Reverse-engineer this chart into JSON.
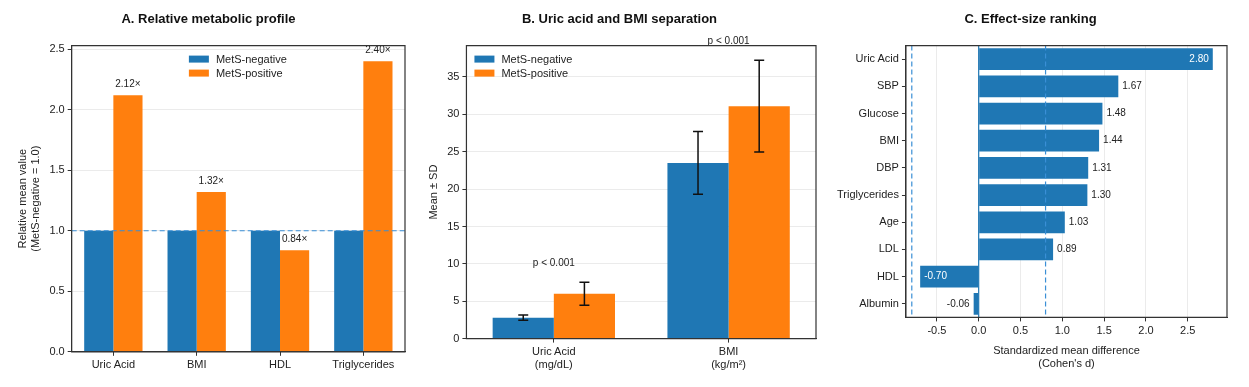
{
  "chart_data": [
    {
      "type": "bar",
      "title": "A. Relative metabolic profile",
      "ylabel": "Relative mean value\n(MetS-negative = 1.0)",
      "categories": [
        "Uric Acid",
        "BMI",
        "HDL",
        "Triglycerides"
      ],
      "series": [
        {
          "name": "MetS-negative",
          "color": "#1f77b4",
          "values": [
            1,
            1,
            1,
            1
          ]
        },
        {
          "name": "MetS-positive",
          "color": "#ff7f0e",
          "values": [
            2.12,
            1.32,
            0.84,
            2.4
          ],
          "value_labels": [
            "2.12×",
            "1.32×",
            "0.84×",
            "2.40×"
          ]
        }
      ],
      "ylim": [
        0,
        2.53
      ],
      "yticks": [
        {
          "value": 0,
          "label": "0.0"
        },
        0.5,
        {
          "value": 1,
          "label": "1.0"
        },
        1.5,
        {
          "value": 2,
          "label": "2.0"
        },
        2.5
      ],
      "ref_lines": [
        {
          "axis": "y",
          "value": 1,
          "color": "#3a8fd6",
          "line_style": "dashed"
        }
      ],
      "grid": "y",
      "legend": "top"
    },
    {
      "type": "bar",
      "title": "B. Uric acid and BMI separation",
      "ylabel": "Mean ± SD",
      "categories": [
        "Uric Acid\n(mg/dL)",
        "BMI\n(kg/m²)"
      ],
      "series": [
        {
          "name": "MetS-negative",
          "color": "#1f77b4",
          "values": [
            2.8,
            23.5
          ],
          "errors": [
            0.35,
            4.2
          ]
        },
        {
          "name": "MetS-positive",
          "color": "#ff7f0e",
          "values": [
            6,
            31.1
          ],
          "errors": [
            1.55,
            6.15
          ]
        }
      ],
      "ylim": [
        0,
        39.2
      ],
      "yticks": [
        0,
        5,
        10,
        15,
        20,
        25,
        30,
        35
      ],
      "annotations": [
        "p < 0.001",
        "p < 0.001"
      ],
      "grid": "y",
      "legend": "top left"
    },
    {
      "type": "bar",
      "orientation": "horizontal",
      "title": "C. Effect-size ranking",
      "xlabel": "Standardized mean difference\n(Cohen's d)",
      "categories": [
        "Uric Acid",
        "SBP",
        "Glucose",
        "BMI",
        "DBP",
        "Triglycerides",
        "Age",
        "LDL",
        "HDL",
        "Albumin"
      ],
      "values": [
        2.8,
        1.67,
        1.48,
        1.44,
        1.31,
        1.3,
        1.03,
        0.89,
        -0.7,
        -0.06
      ],
      "color": "#1f77b4",
      "value_labels": [
        "2.80",
        "1.67",
        "1.48",
        "1.44",
        "1.31",
        "1.30",
        "1.03",
        "0.89",
        "-0.70",
        "-0.06"
      ],
      "xlim": [
        -0.87,
        2.97
      ],
      "xticks": [
        -0.5,
        {
          "value": 0,
          "label": "0.0"
        },
        0.5,
        {
          "value": 1,
          "label": "1.0"
        },
        1.5,
        {
          "value": 2,
          "label": "2.0"
        },
        2.5
      ],
      "ref_lines": [
        {
          "axis": "x",
          "value": 0,
          "color": "#1f77b4",
          "line_style": "solid"
        },
        {
          "axis": "x",
          "value": 0.8,
          "color": "#3a8fd6",
          "line_style": "dashed"
        },
        {
          "axis": "x",
          "value": -0.8,
          "color": "#3a8fd6",
          "line_style": "dashed"
        }
      ],
      "grid": "x"
    }
  ]
}
